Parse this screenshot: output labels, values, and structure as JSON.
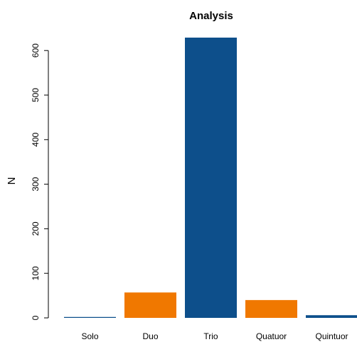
{
  "chart_data": {
    "type": "bar",
    "title": "Analysis",
    "xlabel": "",
    "ylabel": "N",
    "categories": [
      "Solo",
      "Duo",
      "Trio",
      "Quatuor",
      "Quintuor"
    ],
    "values": [
      2,
      57,
      629,
      40,
      6
    ],
    "colors": [
      "#0d4f8b",
      "#f07800",
      "#0d4f8b",
      "#f07800",
      "#0d4f8b"
    ],
    "ylim": [
      0,
      629
    ],
    "yticks": [
      0,
      100,
      200,
      300,
      400,
      500,
      600
    ],
    "grid": false,
    "legend": "none"
  }
}
